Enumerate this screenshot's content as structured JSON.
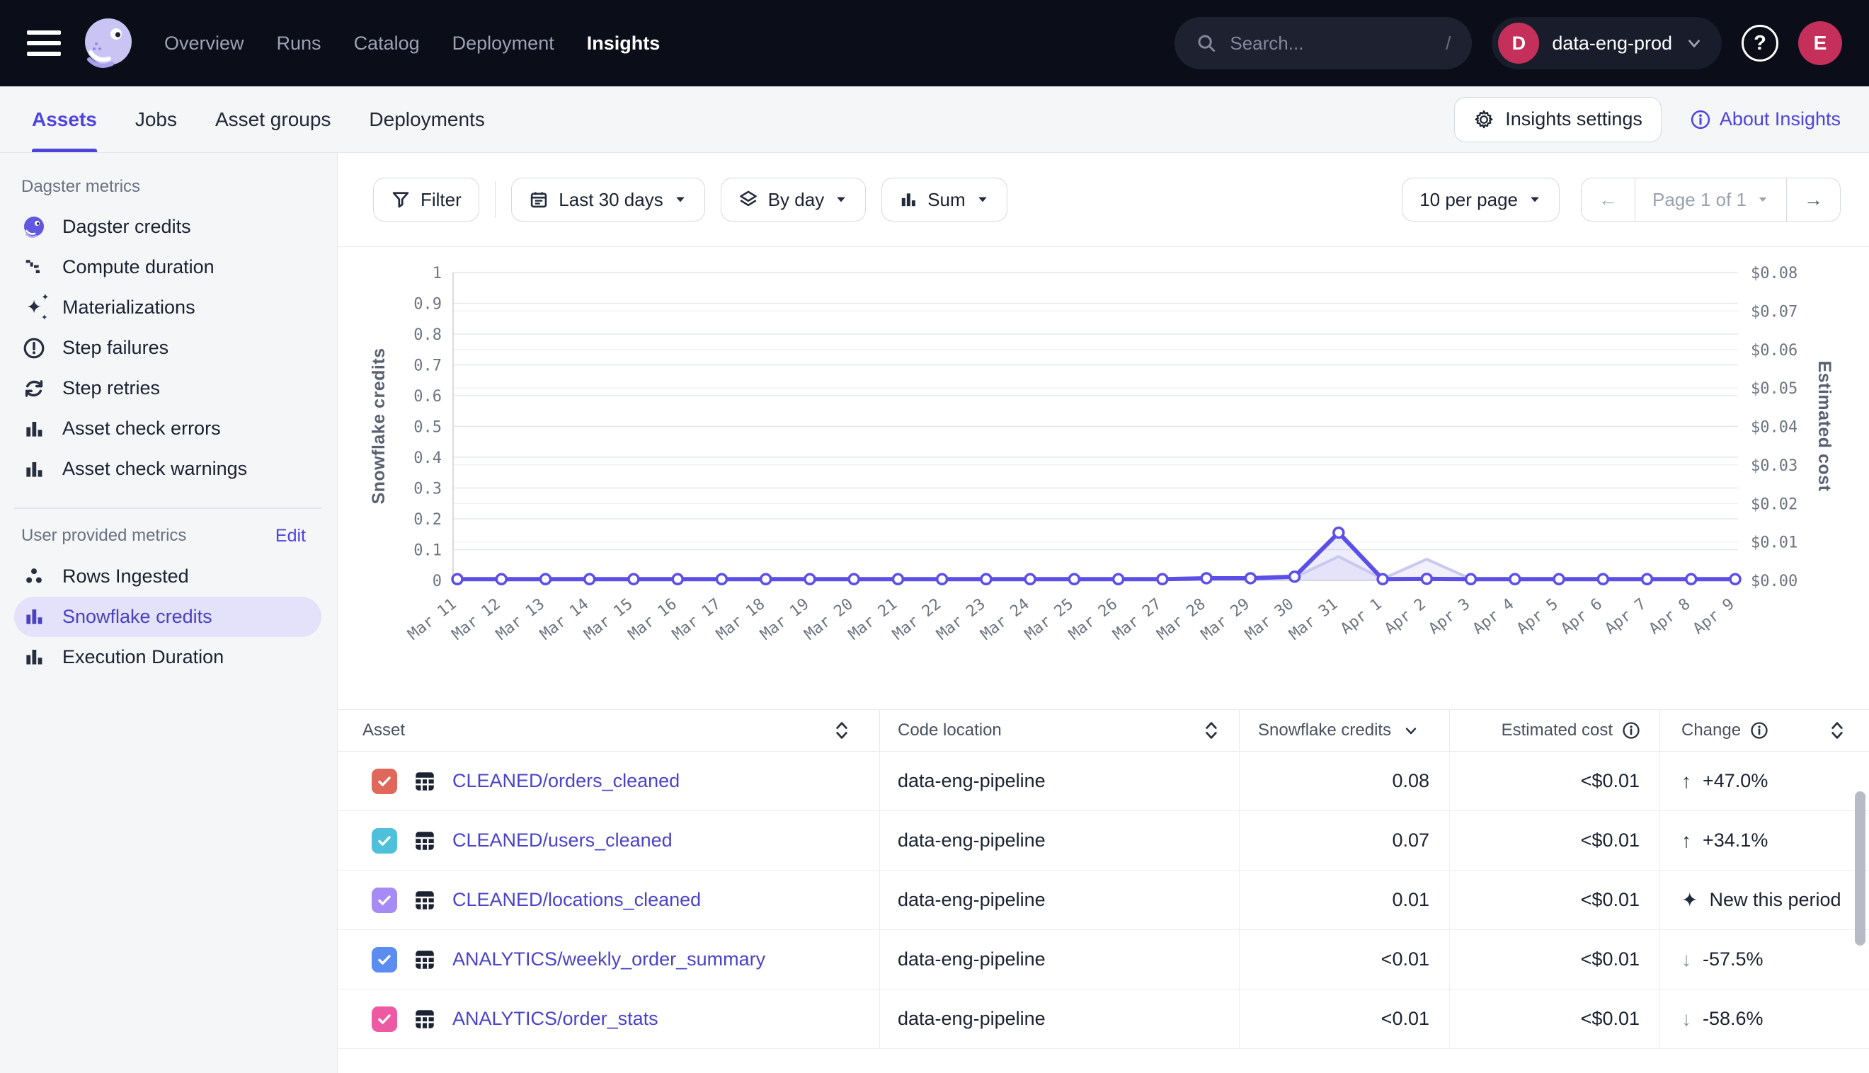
{
  "topnav": {
    "items": [
      "Overview",
      "Runs",
      "Catalog",
      "Deployment",
      "Insights"
    ],
    "active_item": "Insights",
    "search_placeholder": "Search...",
    "search_shortcut": "/",
    "org_initial": "D",
    "org_name": "data-eng-prod",
    "user_initial": "E",
    "avatar_color": "#C5305A"
  },
  "subnav": {
    "tabs": [
      "Assets",
      "Jobs",
      "Asset groups",
      "Deployments"
    ],
    "active_tab": "Assets",
    "settings_label": "Insights settings",
    "about_label": "About Insights"
  },
  "sidebar": {
    "dagster_metrics": {
      "title": "Dagster metrics",
      "items": [
        "Dagster credits",
        "Compute duration",
        "Materializations",
        "Step failures",
        "Step retries",
        "Asset check errors",
        "Asset check warnings"
      ]
    },
    "user_metrics": {
      "title": "User provided metrics",
      "edit_label": "Edit",
      "items": [
        "Rows Ingested",
        "Snowflake credits",
        "Execution Duration"
      ],
      "selected": "Snowflake credits"
    }
  },
  "toolbar": {
    "filter_label": "Filter",
    "date_range": "Last 30 days",
    "granularity": "By day",
    "aggregation": "Sum",
    "per_page": "10 per page",
    "page_label": "Page 1 of 1"
  },
  "chart_data": {
    "type": "line",
    "x": [
      "Mar 11",
      "Mar 12",
      "Mar 13",
      "Mar 14",
      "Mar 15",
      "Mar 16",
      "Mar 17",
      "Mar 18",
      "Mar 19",
      "Mar 20",
      "Mar 21",
      "Mar 22",
      "Mar 23",
      "Mar 24",
      "Mar 25",
      "Mar 26",
      "Mar 27",
      "Mar 28",
      "Mar 29",
      "Mar 30",
      "Mar 31",
      "Apr 1",
      "Apr 2",
      "Apr 3",
      "Apr 4",
      "Apr 5",
      "Apr 6",
      "Apr 7",
      "Apr 8",
      "Apr 9"
    ],
    "series": [
      {
        "name": "Snowflake credits",
        "axis": "left",
        "color": "#5B4FE8",
        "fill": "rgba(91,79,232,0.10)",
        "values": [
          0.004,
          0.004,
          0.004,
          0.004,
          0.004,
          0.004,
          0.004,
          0.004,
          0.004,
          0.004,
          0.004,
          0.004,
          0.004,
          0.004,
          0.004,
          0.004,
          0.004,
          0.007,
          0.007,
          0.012,
          0.155,
          0.004,
          0.005,
          0.004,
          0.004,
          0.004,
          0.004,
          0.004,
          0.004,
          0.004
        ]
      },
      {
        "name": "Estimated cost",
        "axis": "right",
        "color": "#CBC8EF",
        "fill": "rgba(203,200,239,0.28)",
        "values": [
          0.0004,
          0.0004,
          0.0004,
          0.0004,
          0.0004,
          0.0004,
          0.0004,
          0.0004,
          0.0004,
          0.0004,
          0.0004,
          0.0004,
          0.0004,
          0.0004,
          0.0004,
          0.0004,
          0.0004,
          0.0005,
          0.0005,
          0.0008,
          0.0062,
          0.0004,
          0.0055,
          0.0004,
          0.0004,
          0.0004,
          0.0004,
          0.0004,
          0.0004,
          0.0004
        ]
      }
    ],
    "left_axis": {
      "label": "Snowflake credits",
      "min": 0,
      "max": 1,
      "step": 0.1,
      "ticks": [
        "0",
        "0.1",
        "0.2",
        "0.3",
        "0.4",
        "0.5",
        "0.6",
        "0.7",
        "0.8",
        "0.9",
        "1"
      ]
    },
    "right_axis": {
      "label": "Estimated cost",
      "min": 0,
      "max": 0.08,
      "step": 0.01,
      "ticks": [
        "$0.00",
        "$0.01",
        "$0.02",
        "$0.03",
        "$0.04",
        "$0.05",
        "$0.06",
        "$0.07",
        "$0.08"
      ]
    },
    "grid": true,
    "legend": "none"
  },
  "table": {
    "columns": [
      "Asset",
      "Code location",
      "Snowflake credits",
      "Estimated cost",
      "Change"
    ],
    "sorted_column": "Snowflake credits",
    "rows": [
      {
        "checkbox_color": "#E0685A",
        "asset": "CLEANED/orders_cleaned",
        "code_location": "data-eng-pipeline",
        "credits": "0.08",
        "cost": "<$0.01",
        "change_icon": "↑",
        "change": "+47.0%",
        "change_dir": "up"
      },
      {
        "checkbox_color": "#4FC0DC",
        "asset": "CLEANED/users_cleaned",
        "code_location": "data-eng-pipeline",
        "credits": "0.07",
        "cost": "<$0.01",
        "change_icon": "↑",
        "change": "+34.1%",
        "change_dir": "up"
      },
      {
        "checkbox_color": "#A78BF5",
        "asset": "CLEANED/locations_cleaned",
        "code_location": "data-eng-pipeline",
        "credits": "0.01",
        "cost": "<$0.01",
        "change_icon": "✦",
        "change": "New this period",
        "change_dir": "new"
      },
      {
        "checkbox_color": "#5B8CF0",
        "asset": "ANALYTICS/weekly_order_summary",
        "code_location": "data-eng-pipeline",
        "credits": "<0.01",
        "cost": "<$0.01",
        "change_icon": "↓",
        "change": "-57.5%",
        "change_dir": "down"
      },
      {
        "checkbox_color": "#EC5AA4",
        "asset": "ANALYTICS/order_stats",
        "code_location": "data-eng-pipeline",
        "credits": "<0.01",
        "cost": "<$0.01",
        "change_icon": "↓",
        "change": "-58.6%",
        "change_dir": "down"
      }
    ]
  },
  "colors": {
    "accent": "#4F43DD",
    "line": "#5B4FE8",
    "selected_pill": "#E4E1FA",
    "topnav_bg": "#0B0D18"
  }
}
